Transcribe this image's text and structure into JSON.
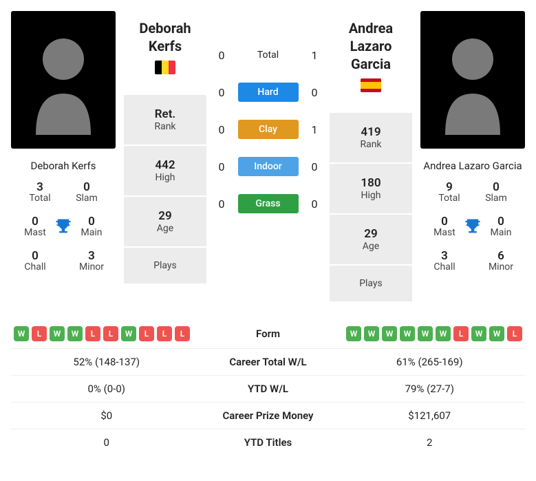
{
  "player_left": {
    "name_full": "Deborah Kerfs",
    "name_lines": [
      "Deborah",
      "Kerfs"
    ],
    "flag_cls": "be",
    "side_stats": {
      "total": 3,
      "slam": 0,
      "mast": 0,
      "main": 0,
      "chall": 0,
      "minor": 3
    },
    "rank": {
      "value": "Ret.",
      "high": "442",
      "age": "29",
      "plays": ""
    }
  },
  "player_right": {
    "name_full": "Andrea Lazaro Garcia",
    "name_lines": [
      "Andrea Lazaro",
      "Garcia"
    ],
    "flag_cls": "es",
    "side_stats": {
      "total": 9,
      "slam": 0,
      "mast": 0,
      "main": 0,
      "chall": 3,
      "minor": 6
    },
    "rank": {
      "value": "419",
      "high": "180",
      "age": "29",
      "plays": ""
    }
  },
  "side_labels": {
    "total": "Total",
    "slam": "Slam",
    "mast": "Mast",
    "main": "Main",
    "chall": "Chall",
    "minor": "Minor"
  },
  "rank_labels": {
    "rank": "Rank",
    "high": "High",
    "age": "Age",
    "plays": "Plays"
  },
  "h2h": {
    "total": {
      "label": "Total",
      "l": 0,
      "r": 1
    },
    "hard": {
      "label": "Hard",
      "l": 0,
      "r": 0
    },
    "clay": {
      "label": "Clay",
      "l": 0,
      "r": 1
    },
    "indoor": {
      "label": "Indoor",
      "l": 0,
      "r": 0
    },
    "grass": {
      "label": "Grass",
      "l": 0,
      "r": 0
    }
  },
  "surface_colors": {
    "hard": "#1e88e5",
    "clay": "#e0981f",
    "indoor": "#4da3e6",
    "grass": "#2ea043"
  },
  "form": {
    "left": [
      "W",
      "L",
      "W",
      "W",
      "L",
      "L",
      "W",
      "L",
      "L",
      "L"
    ],
    "right": [
      "W",
      "W",
      "W",
      "W",
      "W",
      "W",
      "L",
      "W",
      "W",
      "L"
    ],
    "colors": {
      "W": "#4caf50",
      "L": "#ef5350"
    }
  },
  "bottom_rows": [
    {
      "label": "Form",
      "left": "",
      "right": "",
      "is_form": true
    },
    {
      "label": "Career Total W/L",
      "left": "52% (148-137)",
      "right": "61% (265-169)"
    },
    {
      "label": "YTD W/L",
      "left": "0% (0-0)",
      "right": "79% (27-7)"
    },
    {
      "label": "Career Prize Money",
      "left": "$0",
      "right": "$121,607"
    },
    {
      "label": "YTD Titles",
      "left": "0",
      "right": "2"
    }
  ],
  "trophy_color": "#1976d2",
  "silhouette_fill": "#7a7a7a"
}
